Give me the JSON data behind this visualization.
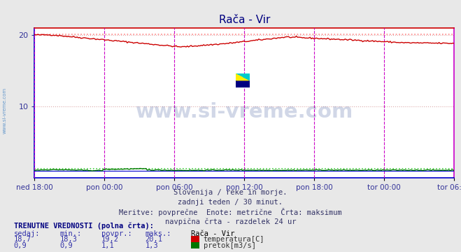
{
  "title": "Rača - Vir",
  "bg_color": "#e8e8e8",
  "plot_bg_color": "#ffffff",
  "grid_color": "#ddaaaa",
  "xlabel_ticks": [
    "ned 18:00",
    "pon 00:00",
    "pon 06:00",
    "pon 12:00",
    "pon 18:00",
    "tor 00:00",
    "tor 06:00"
  ],
  "ylim": [
    0,
    21
  ],
  "yticks": [
    10,
    20
  ],
  "temp_color": "#cc0000",
  "flow_color": "#007700",
  "height_color": "#0000cc",
  "dotted_max_color_temp": "#ff8888",
  "dotted_max_color_flow": "#44cc44",
  "temp_max": 20.1,
  "flow_max": 1.3,
  "temp_min": 18.3,
  "flow_min": 0.9,
  "temp_avg": 19.2,
  "flow_avg": 1.1,
  "temp_cur": 18.7,
  "flow_cur": 0.9,
  "n_points": 336,
  "vline_color": "#cc00cc",
  "left_spine_color": "#0000cc",
  "bottom_spine_color": "#0000cc",
  "right_spine_color": "#cc00cc",
  "top_spine_color": "#cc0000",
  "subtitle1": "Slovenija / reke in morje.",
  "subtitle2": "zadnji teden / 30 minut.",
  "subtitle3": "Meritve: povprečne  Enote: metrične  Črta: maksimum",
  "subtitle4": "navpična črta - razdelek 24 ur",
  "label_header": "TRENUTNE VREDNOSTI (polna črta):",
  "col_headers": [
    "sedaj:",
    "min.:",
    "povpr.:",
    "maks.:",
    "Rača - Vir"
  ],
  "row1_vals": [
    "18,7",
    "18,3",
    "19,2",
    "20,1"
  ],
  "row2_vals": [
    "0,9",
    "0,9",
    "1,1",
    "1,3"
  ],
  "row1_label": "temperatura[C]",
  "row2_label": "pretok[m3/s]",
  "watermark": "www.si-vreme.com",
  "watermark_color": "#1a3a8a",
  "sivreme_left_color": "#6699cc"
}
